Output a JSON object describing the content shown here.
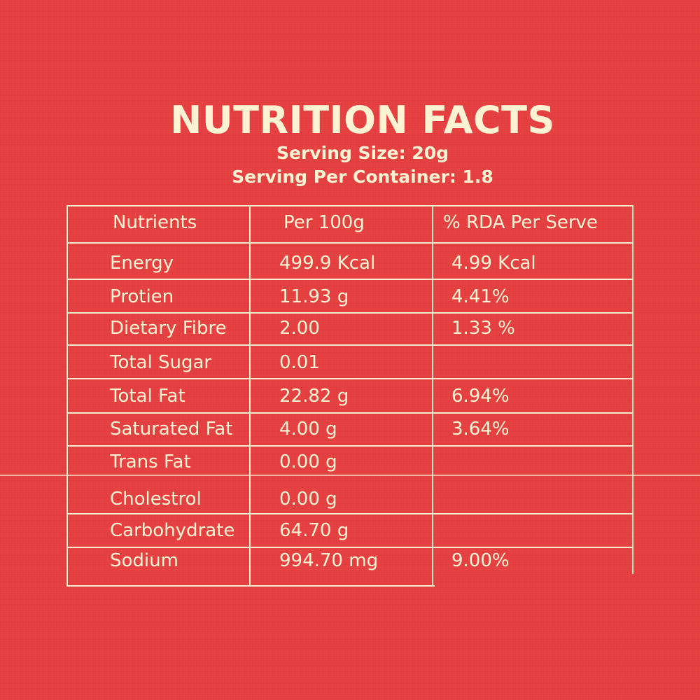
{
  "header": {
    "title": "NUTRITION FACTS",
    "serving_size": "Serving Size: 20g",
    "servings_per_container": "Serving Per Container: 1.8"
  },
  "table": {
    "columns": [
      "Nutrients",
      "Per 100g",
      "% RDA Per Serve"
    ],
    "rows": [
      {
        "nutrient": "Energy",
        "per_100g": "499.9 Kcal",
        "rda": "4.99 Kcal"
      },
      {
        "nutrient": "Protien",
        "per_100g": "11.93 g",
        "rda": "4.41%"
      },
      {
        "nutrient": "Dietary Fibre",
        "per_100g": "2.00",
        "rda": "1.33 %"
      },
      {
        "nutrient": "Total Sugar",
        "per_100g": "0.01",
        "rda": ""
      },
      {
        "nutrient": "Total Fat",
        "per_100g": "22.82 g",
        "rda": "6.94%"
      },
      {
        "nutrient": "Saturated Fat",
        "per_100g": "4.00 g",
        "rda": "3.64%"
      },
      {
        "nutrient": "Trans Fat",
        "per_100g": "0.00 g",
        "rda": ""
      },
      {
        "nutrient": "Cholestrol",
        "per_100g": "0.00 g",
        "rda": ""
      },
      {
        "nutrient": "Carbohydrate",
        "per_100g": "64.70 g",
        "rda": ""
      },
      {
        "nutrient": "Sodium",
        "per_100g": "994.70 mg",
        "rda": "9.00%"
      }
    ]
  },
  "colors": {
    "background": "#e63f40",
    "text": "#fdf3d3",
    "lines": "#f8ebcb"
  }
}
